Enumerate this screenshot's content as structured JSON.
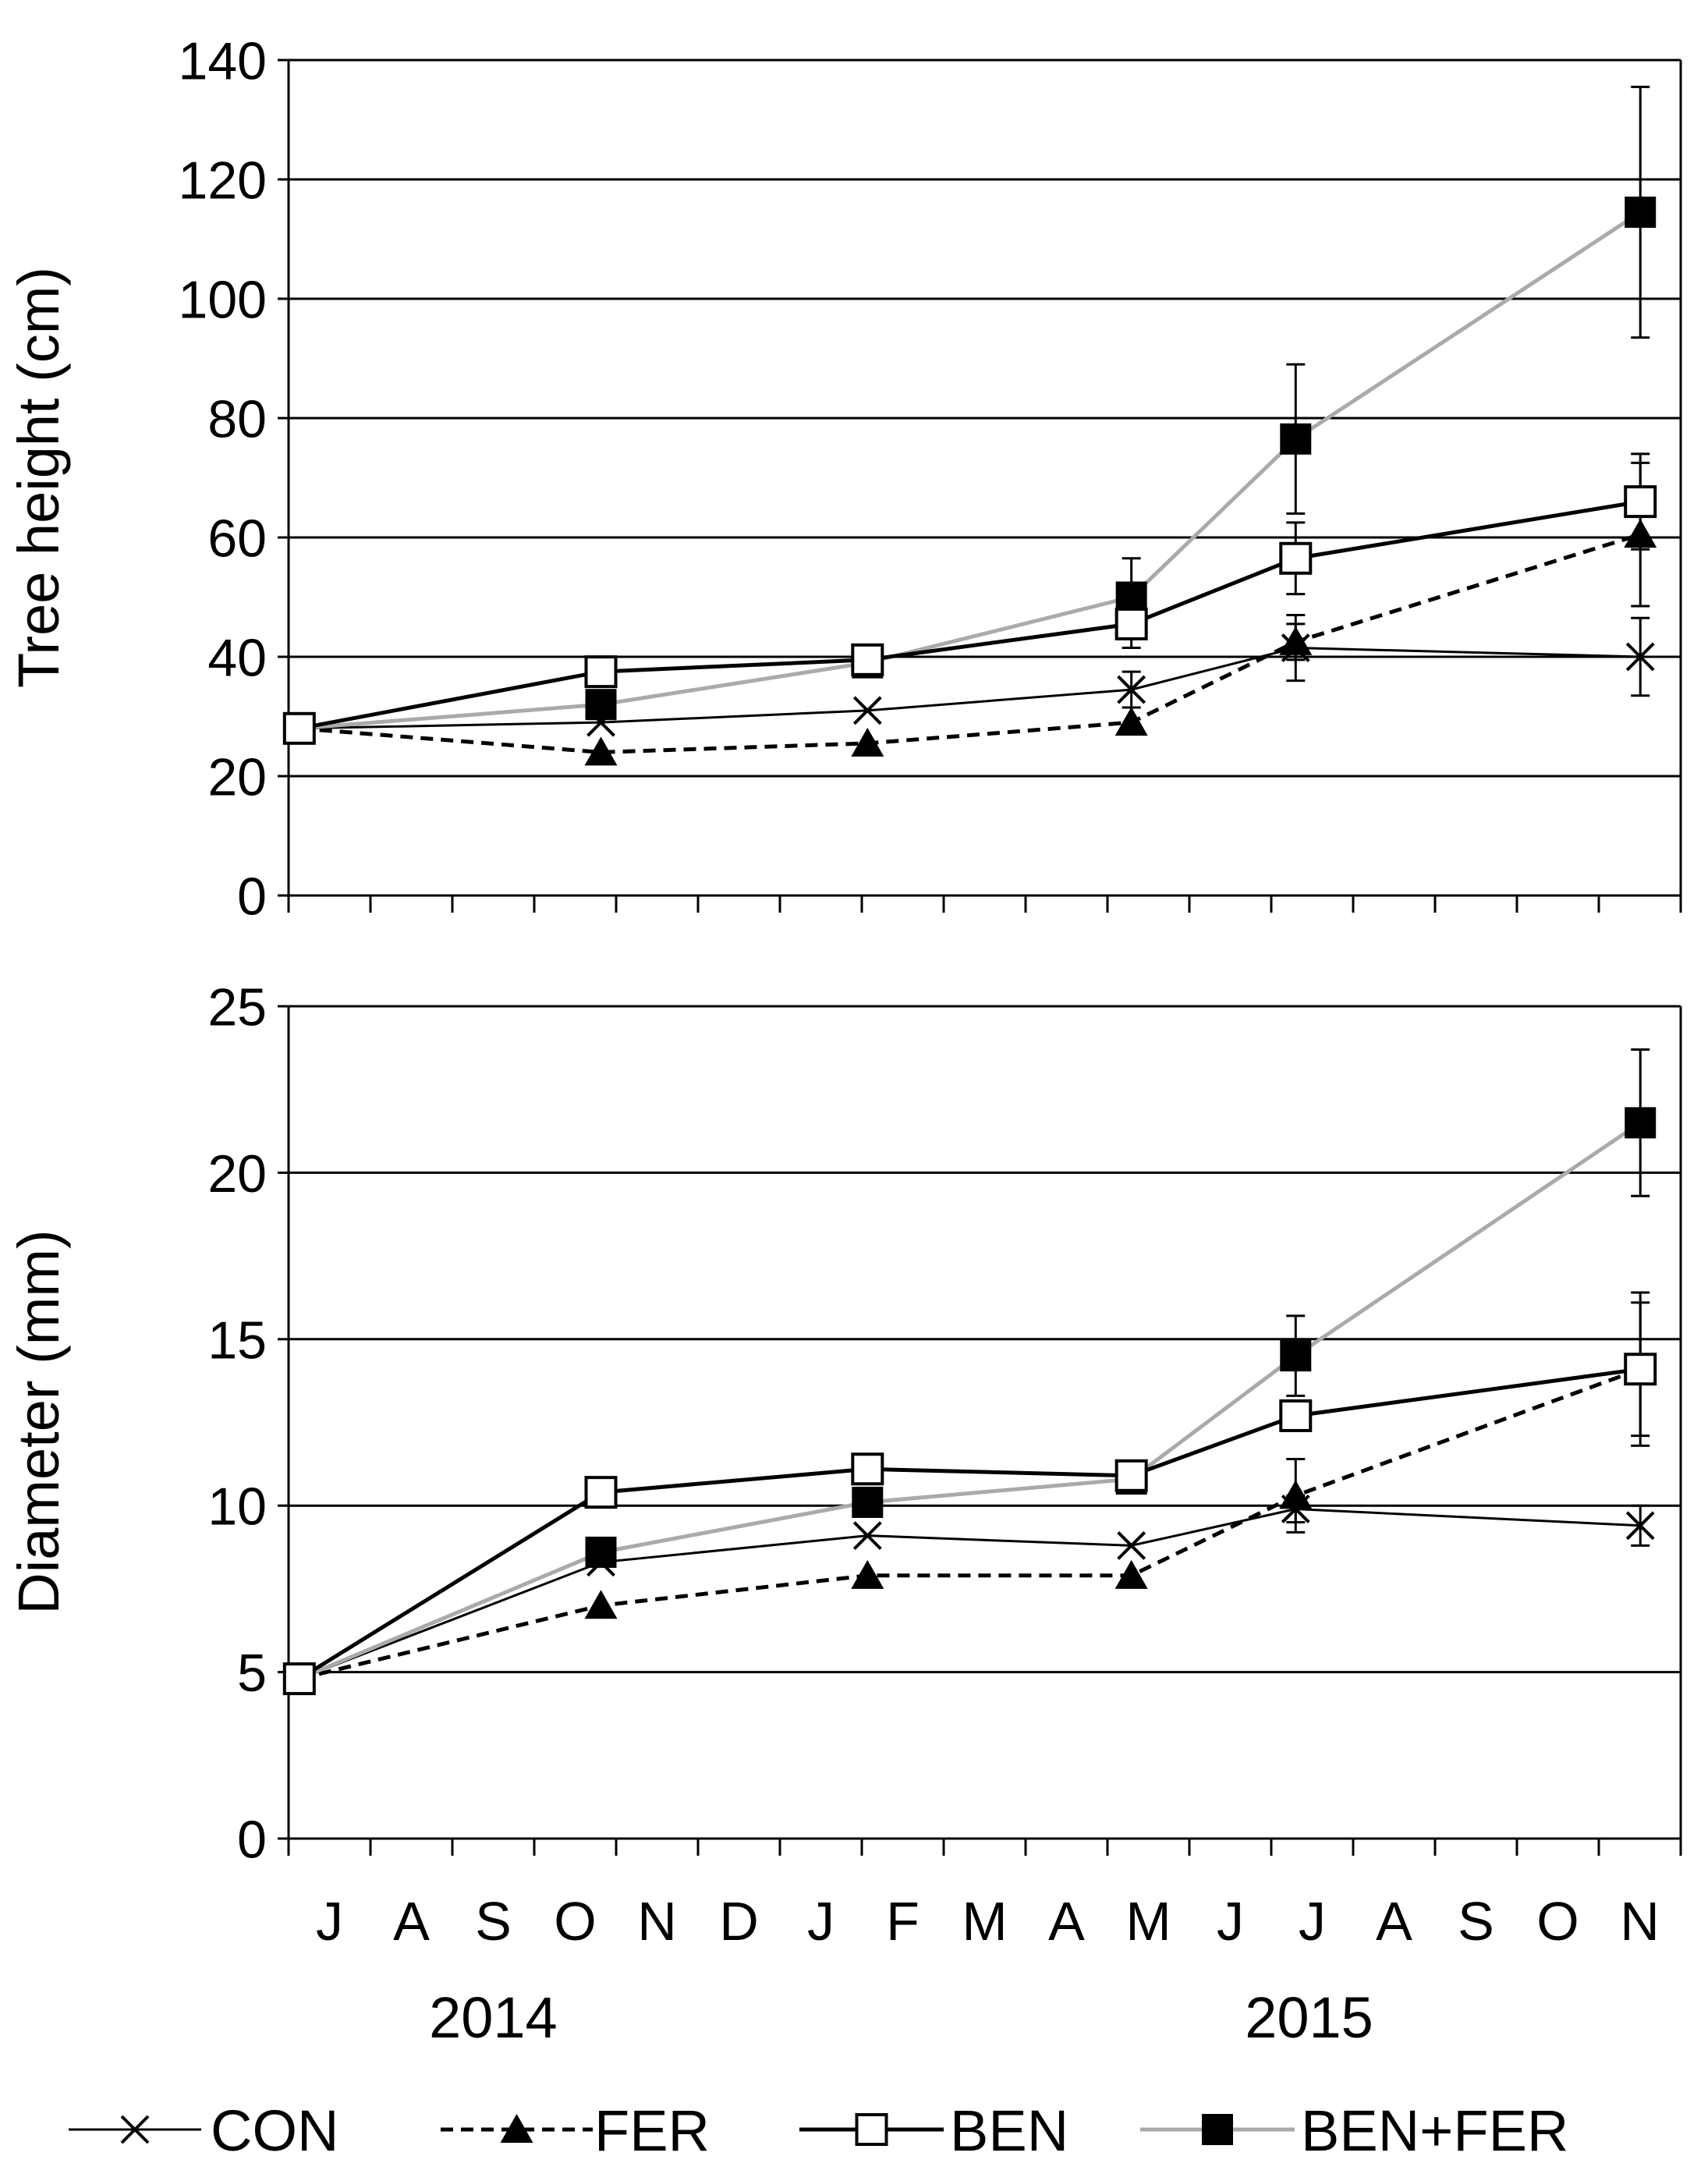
{
  "chart_data": [
    {
      "type": "line",
      "ylabel": "Tree height (cm)",
      "ylim": [
        0,
        140
      ],
      "yticks": [
        0,
        20,
        40,
        60,
        80,
        100,
        120,
        140
      ],
      "grid": true,
      "x": [
        "2014-07-05",
        "2014-10-25",
        "2015-02-01",
        "2015-05-10",
        "2015-07-10",
        "2015-11-15"
      ],
      "series": [
        {
          "name": "CON",
          "values": [
            28,
            29,
            31,
            34.5,
            41.5,
            40
          ],
          "err": [
            0,
            0,
            0,
            3,
            5.5,
            6.5
          ]
        },
        {
          "name": "FER",
          "values": [
            28,
            24,
            25.5,
            29,
            42.5,
            60.5
          ],
          "err": [
            0,
            0,
            0,
            0,
            3,
            12
          ]
        },
        {
          "name": "BEN",
          "values": [
            28,
            37.5,
            39.5,
            45.5,
            56.5,
            66
          ],
          "err": [
            0,
            0,
            0,
            4,
            6,
            8
          ]
        },
        {
          "name": "BEN+FER",
          "values": [
            28,
            32,
            39,
            50,
            76.5,
            114.5
          ],
          "err": [
            0,
            0,
            0,
            6.5,
            12.5,
            21
          ]
        }
      ]
    },
    {
      "type": "line",
      "ylabel": "Diameter (mm)",
      "ylim": [
        0,
        25
      ],
      "yticks": [
        0,
        5,
        10,
        15,
        20,
        25
      ],
      "grid": true,
      "x": [
        "2014-07-05",
        "2014-10-25",
        "2015-02-01",
        "2015-05-10",
        "2015-07-10",
        "2015-11-15"
      ],
      "series": [
        {
          "name": "CON",
          "values": [
            4.8,
            8.3,
            9.1,
            8.8,
            9.9,
            9.4
          ],
          "err": [
            0,
            0,
            0,
            0,
            0.4,
            0.6
          ]
        },
        {
          "name": "FER",
          "values": [
            4.8,
            7.0,
            7.9,
            7.9,
            10.3,
            14.1
          ],
          "err": [
            0,
            0,
            0,
            0,
            1.1,
            2.0
          ]
        },
        {
          "name": "BEN",
          "values": [
            4.8,
            10.4,
            11.1,
            10.9,
            12.7,
            14.1
          ],
          "err": [
            0,
            0,
            0,
            0,
            0,
            2.3
          ]
        },
        {
          "name": "BEN+FER",
          "values": [
            4.8,
            8.6,
            10.1,
            10.8,
            14.5,
            21.5
          ],
          "err": [
            0,
            0,
            0,
            0,
            1.2,
            2.2
          ]
        }
      ]
    }
  ],
  "x_axis": {
    "month_labels": [
      "J",
      "A",
      "S",
      "O",
      "N",
      "D",
      "J",
      "F",
      "M",
      "A",
      "M",
      "J",
      "J",
      "A",
      "S",
      "O",
      "N"
    ],
    "range": [
      "2014-07-01",
      "2015-11-30"
    ],
    "years": [
      {
        "label": "2014",
        "at": "2014-09-15"
      },
      {
        "label": "2015",
        "at": "2015-07-15"
      }
    ]
  },
  "legend": {
    "placement": "bottom",
    "items": [
      "CON",
      "FER",
      "BEN",
      "BEN+FER"
    ]
  },
  "styles": {
    "CON": {
      "marker": "x-mark",
      "color": "#000000",
      "dash": "solid"
    },
    "FER": {
      "marker": "triangle-filled",
      "color": "#000000",
      "dash": "dashed"
    },
    "BEN": {
      "marker": "square-open",
      "color": "#000000",
      "dash": "solid"
    },
    "BEN+FER": {
      "marker": "square-filled",
      "color": "#aaaaaa",
      "dash": "solid"
    }
  }
}
